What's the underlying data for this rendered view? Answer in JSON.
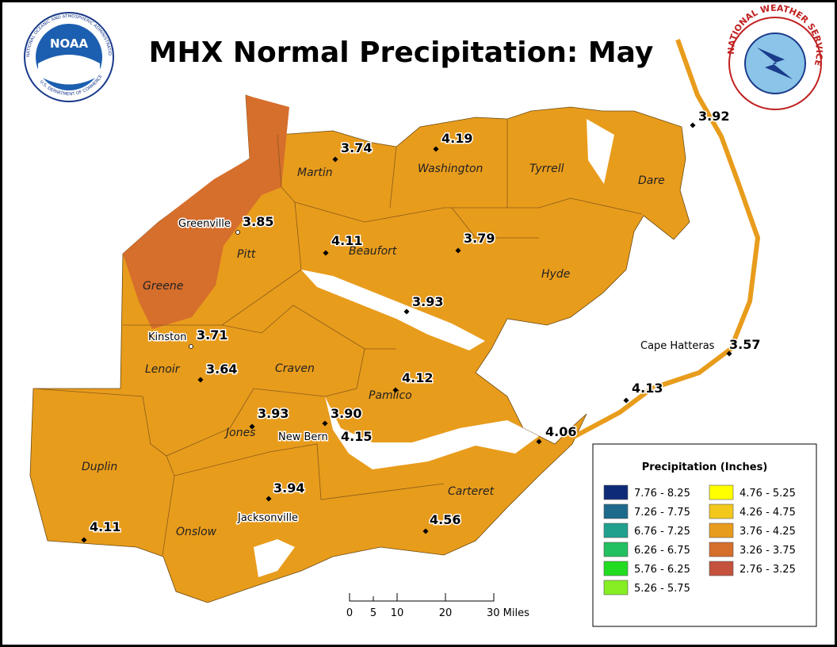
{
  "title": "MHX Normal Precipitation: May",
  "noaa_logo": {
    "label": "NOAA",
    "ring_top": "NATIONAL OCEANIC AND ATMOSPHERIC ADMINISTRATION",
    "ring_bottom": "U.S. DEPARTMENT OF COMMERCE"
  },
  "nws_logo": {
    "ring": "NATIONAL WEATHER SERVICE"
  },
  "counties": [
    "Martin",
    "Washington",
    "Tyrrell",
    "Dare",
    "Pitt",
    "Beaufort",
    "Hyde",
    "Greene",
    "Lenoir",
    "Craven",
    "Pamlico",
    "Jones",
    "Duplin",
    "Carteret",
    "Onslow"
  ],
  "cities": [
    "Greenville",
    "Kinston",
    "Cape Hatteras",
    "New Bern",
    "Jacksonville"
  ],
  "stations": [
    "3.74",
    "4.19",
    "3.92",
    "3.85",
    "4.11",
    "3.79",
    "3.93",
    "3.71",
    "3.57",
    "3.64",
    "4.12",
    "4.13",
    "3.93",
    "3.90",
    "4.06",
    "4.15",
    "3.94",
    "4.11",
    "4.56"
  ],
  "legend": {
    "title": "Precipitation (Inches)",
    "entries": [
      {
        "label": "7.76 - 8.25",
        "color": "#0d2a78"
      },
      {
        "label": "7.26 - 7.75",
        "color": "#1d6a8c"
      },
      {
        "label": "6.76 - 7.25",
        "color": "#22a08e"
      },
      {
        "label": "6.26 - 6.75",
        "color": "#22c060"
      },
      {
        "label": "5.76 - 6.25",
        "color": "#22dc22"
      },
      {
        "label": "5.26 - 5.75",
        "color": "#86ee22"
      },
      {
        "label": "4.76 - 5.25",
        "color": "#ffff00"
      },
      {
        "label": "4.26 - 4.75",
        "color": "#f2c81c"
      },
      {
        "label": "3.76 - 4.25",
        "color": "#e89c1c"
      },
      {
        "label": "3.26 - 3.75",
        "color": "#d66e2c"
      },
      {
        "label": "2.76 - 3.25",
        "color": "#c4523c"
      }
    ]
  },
  "scale_bar": [
    "0",
    "5",
    "10",
    "20",
    "30 Miles"
  ]
}
